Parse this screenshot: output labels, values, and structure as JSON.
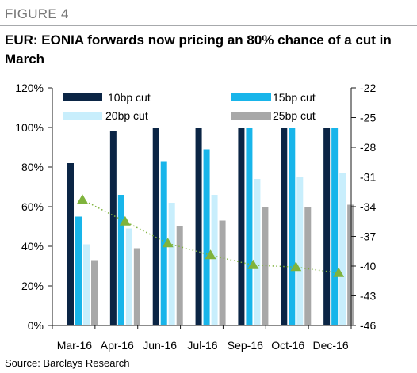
{
  "figure_label": "FIGURE 4",
  "title": "EUR: EONIA forwards now pricing an 80% chance of a cut in March",
  "source": "Source: Barclays Research",
  "colors": {
    "10bp cut": "#0b2545",
    "15bp cut": "#18b5ea",
    "20bp cut": "#c8eefc",
    "25bp cut": "#a8a8a8",
    "line": "#7fb33c",
    "axis": "#1a1a1a"
  },
  "chart_data": {
    "type": "bar",
    "categories": [
      "Mar-16",
      "Apr-16",
      "Jun-16",
      "Jul-16",
      "Sep-16",
      "Oct-16",
      "Dec-16"
    ],
    "series": [
      {
        "name": "10bp cut",
        "axis": "left",
        "values": [
          82,
          98,
          100,
          100,
          100,
          100,
          100
        ]
      },
      {
        "name": "15bp cut",
        "axis": "left",
        "values": [
          55,
          66,
          83,
          89,
          100,
          100,
          100
        ]
      },
      {
        "name": "20bp cut",
        "axis": "left",
        "values": [
          41,
          49,
          62,
          66,
          74,
          75,
          77
        ]
      },
      {
        "name": "25bp cut",
        "axis": "left",
        "values": [
          33,
          39,
          50,
          53,
          60,
          60,
          61
        ]
      },
      {
        "axis": "right",
        "style": "dotted-line-triangle-markers",
        "values": [
          -33.3,
          -35.5,
          -37.7,
          -38.9,
          -39.9,
          -40.1,
          -40.7
        ]
      }
    ],
    "y_left": {
      "ylim": [
        0,
        120
      ],
      "ticks": [
        "0%",
        "20%",
        "40%",
        "60%",
        "80%",
        "100%",
        "120%"
      ]
    },
    "y_right": {
      "ylim": [
        -46,
        -22
      ],
      "ticks": [
        "-22",
        "-25",
        "-28",
        "-31",
        "-34",
        "-37",
        "-40",
        "-43",
        "-46"
      ]
    },
    "xlabel": "",
    "ylabel": "",
    "grid": false,
    "legend": {
      "placement": "top",
      "entries": [
        "10bp cut",
        "15bp cut",
        "20bp cut",
        "25bp cut"
      ]
    }
  }
}
